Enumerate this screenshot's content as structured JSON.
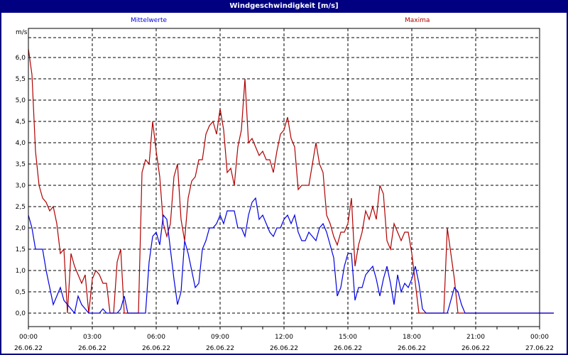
{
  "window": {
    "title": "Windgeschwindigkeit [m/s]"
  },
  "legend": {
    "mean_label": "Mittelwerte",
    "max_label": "Maxima",
    "mean_color": "#0000e0",
    "max_color": "#b00000"
  },
  "axes": {
    "y_unit": "m/s",
    "y_ticks": [
      "0,0",
      "0,5",
      "1,0",
      "1,5",
      "2,0",
      "2,5",
      "3,0",
      "3,5",
      "4,0",
      "4,5",
      "5,0",
      "5,5",
      "6,0"
    ],
    "x_ticks": [
      {
        "time": "00:00",
        "date": "26.06.22"
      },
      {
        "time": "03:00",
        "date": "26.06.22"
      },
      {
        "time": "06:00",
        "date": "26.06.22"
      },
      {
        "time": "09:00",
        "date": "26.06.22"
      },
      {
        "time": "12:00",
        "date": "26.06.22"
      },
      {
        "time": "15:00",
        "date": "26.06.22"
      },
      {
        "time": "18:00",
        "date": "26.06.22"
      },
      {
        "time": "21:00",
        "date": "26.06.22"
      },
      {
        "time": "00:00",
        "date": "27.06.22"
      }
    ]
  },
  "chart_data": {
    "type": "line",
    "title": "Windgeschwindigkeit [m/s]",
    "xlabel": "",
    "ylabel": "m/s",
    "ylim": [
      -0.33,
      6.7
    ],
    "xlim": [
      "26.06.22 00:00",
      "27.06.22 00:00"
    ],
    "grid": true,
    "legend_position": "top",
    "interval_minutes": 10,
    "series": [
      {
        "name": "Mittelwerte",
        "color": "#0000e0",
        "values": [
          2.3,
          2.0,
          1.5,
          1.5,
          1.5,
          1.0,
          0.6,
          0.2,
          0.4,
          0.6,
          0.3,
          0.2,
          0.1,
          0.0,
          0.4,
          0.2,
          0.1,
          0.0,
          0.0,
          0.0,
          0.0,
          0.1,
          0.0,
          0.0,
          0.0,
          0.0,
          0.1,
          0.4,
          0.0,
          0.0,
          0.0,
          0.0,
          0.0,
          0.0,
          1.2,
          1.8,
          1.9,
          1.6,
          2.3,
          2.2,
          1.5,
          0.8,
          0.2,
          0.5,
          1.7,
          1.4,
          1.0,
          0.6,
          0.7,
          1.5,
          1.7,
          2.0,
          2.0,
          2.1,
          2.3,
          2.1,
          2.4,
          2.4,
          2.4,
          2.0,
          2.0,
          1.8,
          2.3,
          2.6,
          2.7,
          2.2,
          2.3,
          2.1,
          1.9,
          1.8,
          2.0,
          2.0,
          2.2,
          2.3,
          2.1,
          2.3,
          1.9,
          1.7,
          1.7,
          1.9,
          1.8,
          1.7,
          2.0,
          2.1,
          1.9,
          1.6,
          1.3,
          0.4,
          0.6,
          1.1,
          1.4,
          1.4,
          0.3,
          0.6,
          0.6,
          0.9,
          1.0,
          1.1,
          0.8,
          0.4,
          0.8,
          1.1,
          0.7,
          0.2,
          0.9,
          0.5,
          0.7,
          0.6,
          0.8,
          1.1,
          0.7,
          0.1,
          0.0,
          0.0,
          0.0,
          0.0,
          0.0,
          0.0,
          0.0,
          0.3,
          0.6,
          0.5,
          0.2,
          0.0,
          0.0,
          0.0,
          0.0,
          0.0,
          0.0,
          0.0,
          0.0,
          0.0,
          0.0,
          0.0,
          0.0,
          0.0,
          0.0,
          0.0,
          0.0,
          0.0,
          0.0,
          0.0,
          0.0,
          0.0,
          0.0,
          0.0,
          0.0,
          0.0,
          0.0
        ]
      },
      {
        "name": "Maxima",
        "color": "#b00000",
        "values": [
          6.2,
          5.6,
          3.8,
          3.0,
          2.7,
          2.6,
          2.4,
          2.5,
          2.1,
          1.4,
          1.5,
          0.0,
          1.4,
          1.1,
          0.9,
          0.7,
          0.9,
          0.0,
          0.8,
          1.0,
          0.9,
          0.7,
          0.7,
          0.0,
          0.0,
          1.2,
          1.5,
          0.0,
          0.0,
          0.0,
          0.0,
          0.0,
          3.3,
          3.6,
          3.5,
          4.5,
          3.8,
          3.2,
          2.1,
          1.8,
          2.1,
          3.2,
          3.5,
          2.2,
          1.7,
          2.7,
          3.1,
          3.2,
          3.6,
          3.6,
          4.2,
          4.4,
          4.5,
          4.2,
          4.8,
          4.3,
          3.3,
          3.4,
          3.0,
          3.9,
          4.3,
          5.5,
          4.0,
          4.1,
          3.9,
          3.7,
          3.8,
          3.6,
          3.6,
          3.3,
          3.8,
          4.2,
          4.3,
          4.6,
          4.1,
          3.9,
          2.9,
          3.0,
          3.0,
          3.0,
          3.5,
          4.0,
          3.5,
          3.3,
          2.3,
          2.1,
          1.8,
          1.6,
          1.9,
          1.9,
          2.1,
          2.7,
          1.1,
          1.6,
          1.9,
          2.4,
          2.2,
          2.5,
          2.2,
          3.0,
          2.8,
          1.7,
          1.5,
          2.1,
          1.9,
          1.7,
          1.9,
          1.9,
          1.4,
          0.7,
          0.0,
          0.0,
          0.0,
          0.0,
          0.0,
          0.0,
          0.0,
          0.0,
          2.0,
          1.4,
          0.8,
          0.0,
          0.0,
          0.0,
          0.0,
          0.0,
          0.0,
          0.0,
          0.0,
          0.0,
          0.0,
          0.0,
          0.0,
          0.0,
          0.0,
          0.0,
          0.0,
          0.0,
          0.0,
          0.0,
          0.0,
          0.0,
          0.0,
          0.0,
          0.0,
          0.0,
          0.0,
          0.0,
          0.0
        ]
      }
    ]
  }
}
